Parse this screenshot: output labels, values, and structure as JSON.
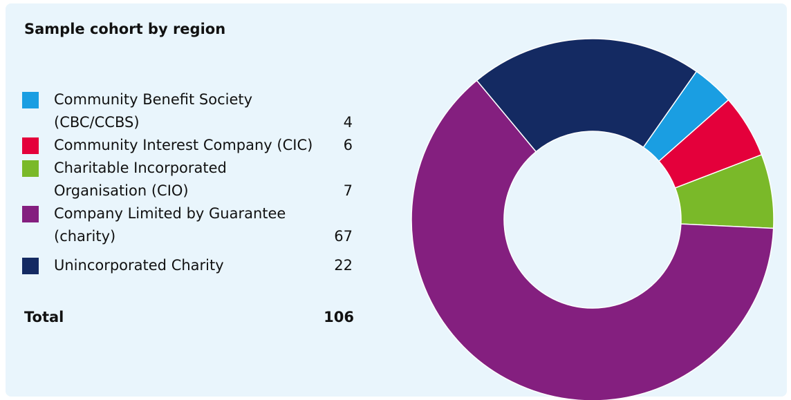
{
  "chart_data": {
    "type": "donut",
    "title": "Sample cohort by region",
    "categories": [
      "Community Benefit Society (CBC/CCBS)",
      "Community Interest Company (CIC)",
      "Charitable Incorporated Organisation (CIO)",
      "Company Limited by Guarantee (charity)",
      "Unincorporated Charity"
    ],
    "values": [
      4,
      6,
      7,
      67,
      22
    ],
    "colors": [
      "#1a9ee2",
      "#e4003b",
      "#7ab929",
      "#841f7f",
      "#142a62"
    ],
    "total": {
      "label": "Total",
      "value": 106
    }
  }
}
